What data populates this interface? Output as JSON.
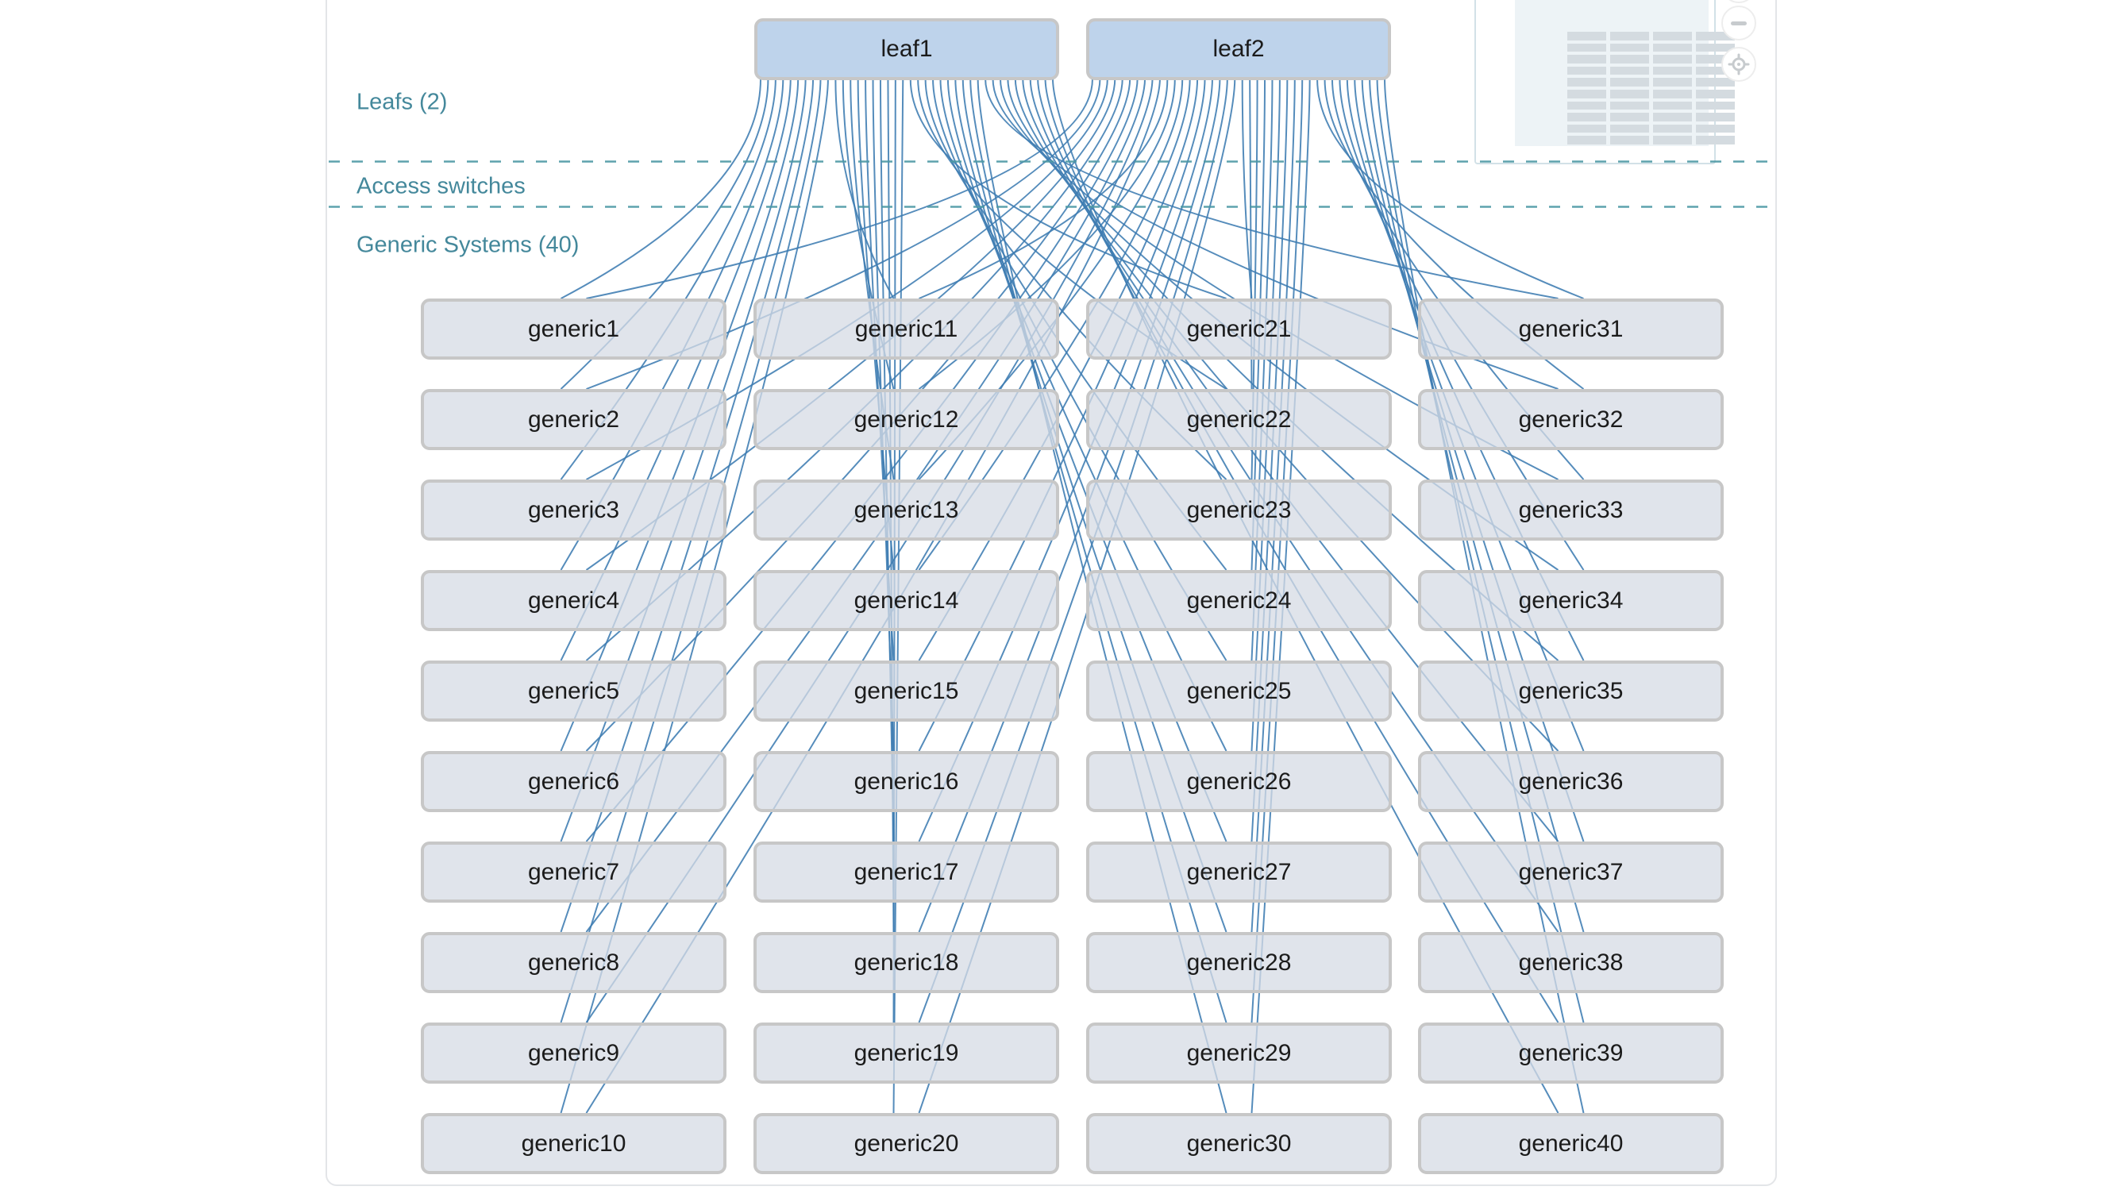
{
  "sections": {
    "leafs": {
      "label": "Leafs (2)"
    },
    "access_switches": {
      "label": "Access switches"
    },
    "generic_systems": {
      "label": "Generic Systems (40)"
    }
  },
  "topology": {
    "leafs": [
      "leaf1",
      "leaf2"
    ],
    "generics": [
      "generic1",
      "generic2",
      "generic3",
      "generic4",
      "generic5",
      "generic6",
      "generic7",
      "generic8",
      "generic9",
      "generic10",
      "generic11",
      "generic12",
      "generic13",
      "generic14",
      "generic15",
      "generic16",
      "generic17",
      "generic18",
      "generic19",
      "generic20",
      "generic21",
      "generic22",
      "generic23",
      "generic24",
      "generic25",
      "generic26",
      "generic27",
      "generic28",
      "generic29",
      "generic30",
      "generic31",
      "generic32",
      "generic33",
      "generic34",
      "generic35",
      "generic36",
      "generic37",
      "generic38",
      "generic39",
      "generic40"
    ],
    "links": [
      {
        "source": "leaf1",
        "targets": "all-generics"
      },
      {
        "source": "leaf2",
        "targets": "all-generics"
      }
    ],
    "colors": {
      "leaf_fill": "#bed3eb",
      "generic_fill": "#d7dce6",
      "node_border": "#c7c7c7",
      "edge": "#3e7cb2",
      "node_label": "#1b1b1b",
      "section_label": "#44889b",
      "separator": "#4d98a4"
    }
  },
  "minimap": {
    "grid_rows": 10,
    "grid_cols": 4,
    "leaf_count": 2,
    "map_fill": "#edf3f6",
    "item_fill": "#d4dbe0",
    "border": "#d2e1e7"
  },
  "controls": [
    {
      "id": "zoom-in",
      "icon": "plus-icon"
    },
    {
      "id": "zoom-out",
      "icon": "minus-icon"
    },
    {
      "id": "locate",
      "icon": "crosshair-icon"
    }
  ]
}
